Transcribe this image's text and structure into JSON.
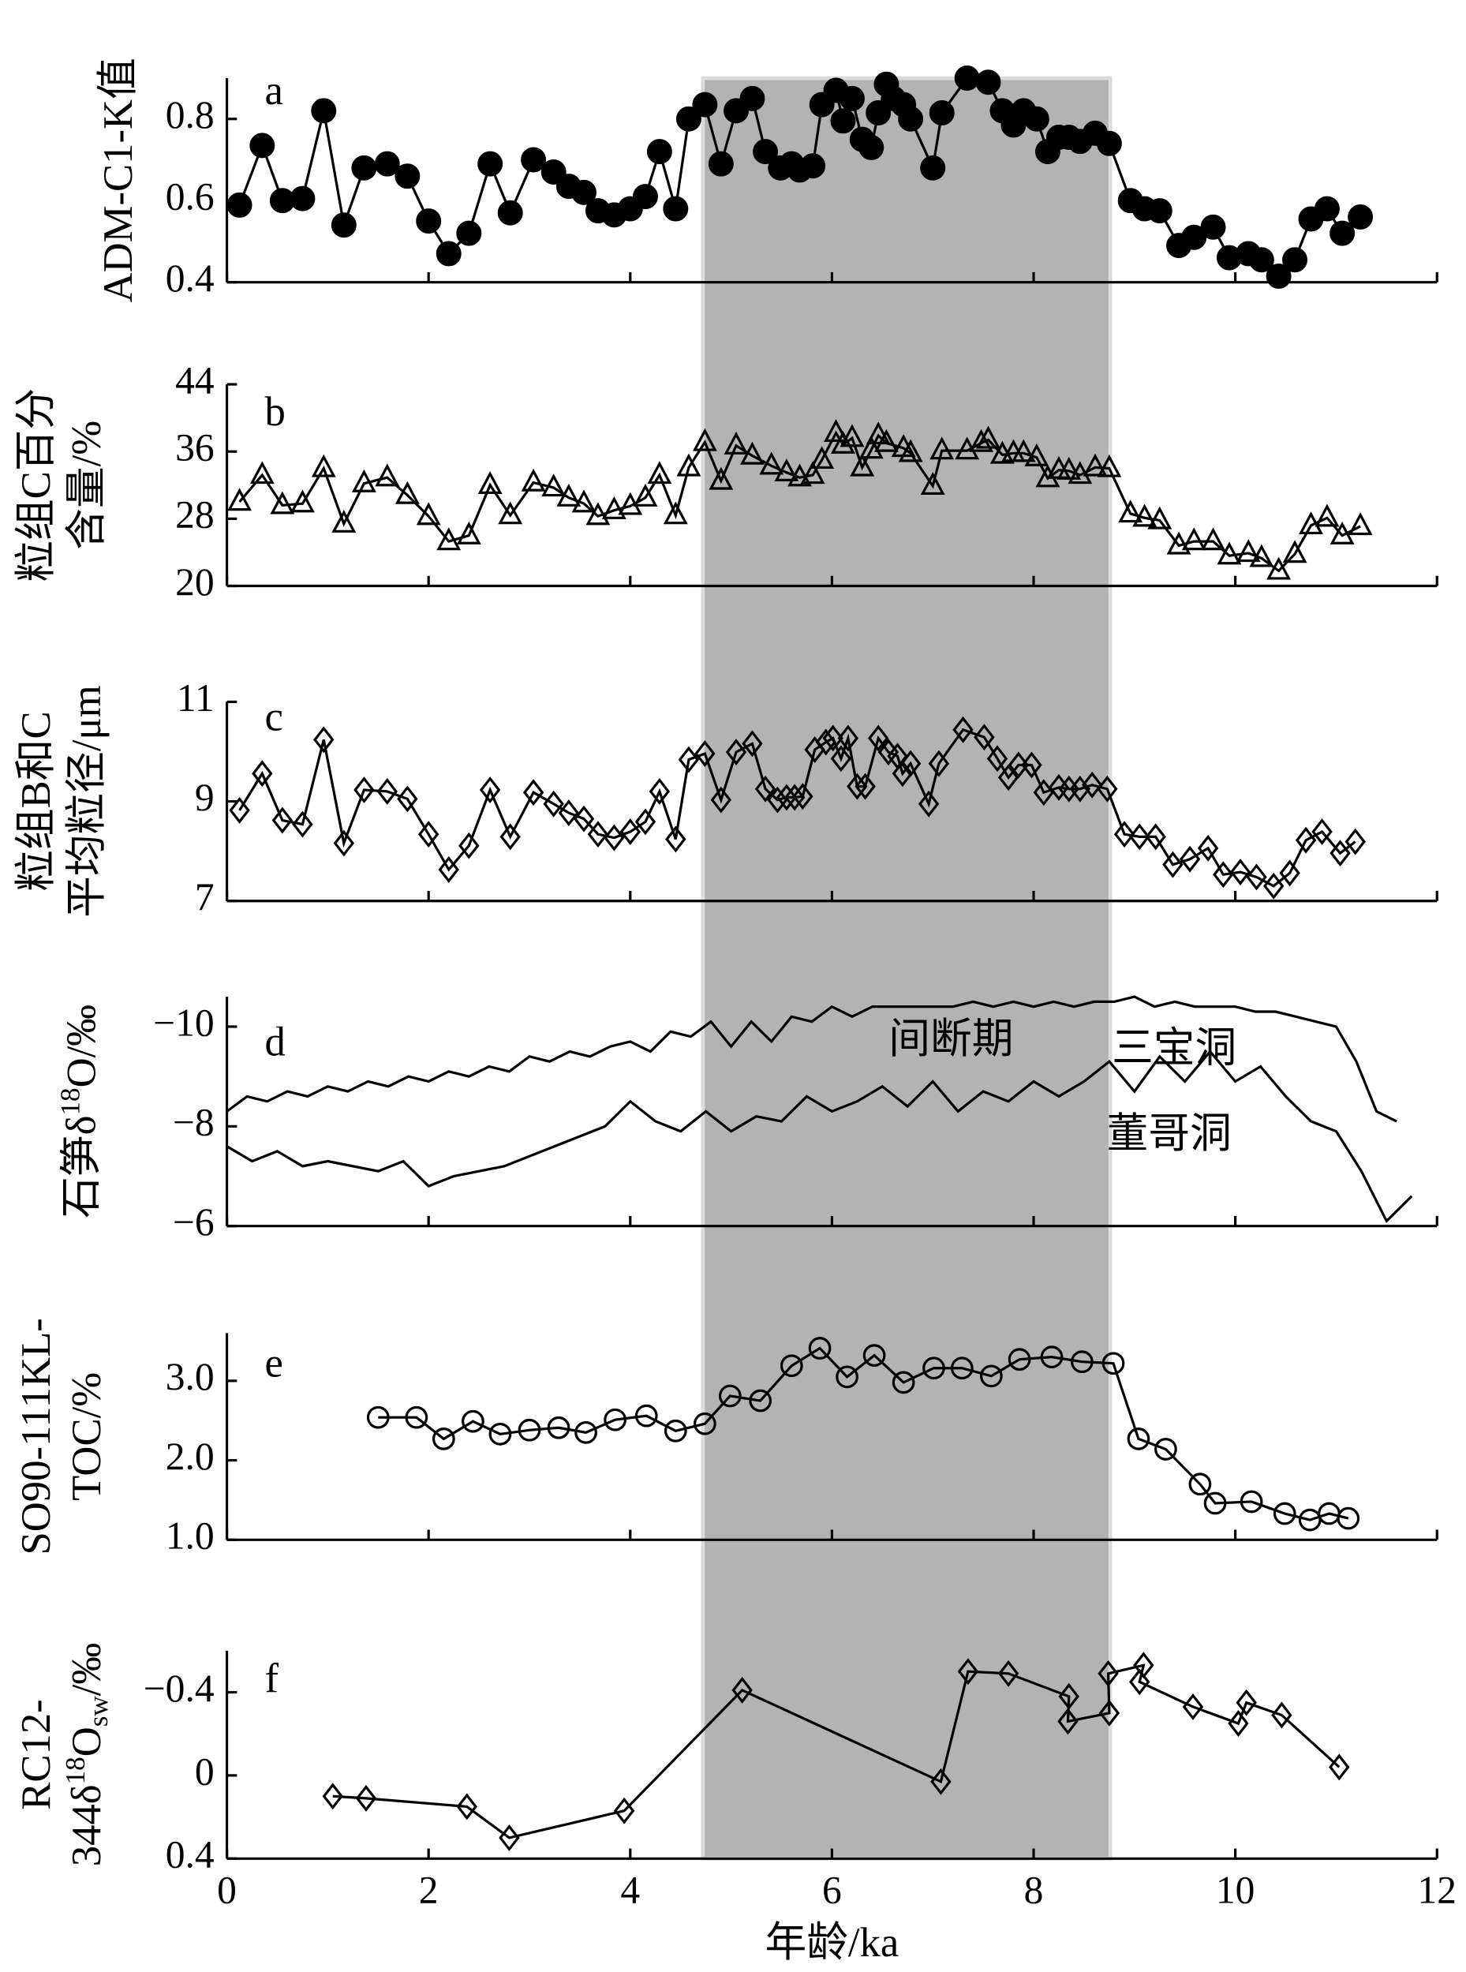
{
  "shaded_span": [
    4.72,
    8.76
  ],
  "chart_data": [
    {
      "type": "line",
      "letter": "a",
      "marker": "filled-circle",
      "ylabel": [
        [
          "ADM-C1-K值"
        ]
      ],
      "ylim": [
        0.4,
        0.9
      ],
      "yticks": [
        0.4,
        0.6,
        0.8
      ],
      "x": [
        0.125,
        0.35,
        0.55,
        0.75,
        0.96,
        1.16,
        1.36,
        1.59,
        1.79,
        2.0,
        2.2,
        2.4,
        2.61,
        2.81,
        3.04,
        3.24,
        3.39,
        3.54,
        3.68,
        3.84,
        4.0,
        4.15,
        4.29,
        4.45,
        4.58,
        4.74,
        4.9,
        5.05,
        5.21,
        5.34,
        5.49,
        5.6,
        5.68,
        5.81,
        5.9,
        6.04,
        6.11,
        6.2,
        6.3,
        6.39,
        6.46,
        6.54,
        6.61,
        6.71,
        6.78,
        7.0,
        7.09,
        7.34,
        7.55,
        7.69,
        7.8,
        7.9,
        8.03,
        8.14,
        8.25,
        8.35,
        8.46,
        8.61,
        8.75,
        8.96,
        9.1,
        9.25,
        9.44,
        9.59,
        9.78,
        9.94,
        10.13,
        10.26,
        10.43,
        10.59,
        10.75,
        10.91,
        11.06,
        11.24
      ],
      "values": [
        0.589,
        0.735,
        0.6,
        0.605,
        0.82,
        0.54,
        0.68,
        0.69,
        0.66,
        0.55,
        0.47,
        0.52,
        0.69,
        0.57,
        0.7,
        0.67,
        0.635,
        0.62,
        0.575,
        0.565,
        0.58,
        0.61,
        0.72,
        0.58,
        0.8,
        0.835,
        0.69,
        0.82,
        0.85,
        0.72,
        0.68,
        0.69,
        0.675,
        0.685,
        0.835,
        0.87,
        0.795,
        0.85,
        0.75,
        0.73,
        0.815,
        0.885,
        0.85,
        0.835,
        0.8,
        0.68,
        0.815,
        0.9,
        0.89,
        0.82,
        0.785,
        0.82,
        0.8,
        0.72,
        0.755,
        0.755,
        0.745,
        0.765,
        0.74,
        0.6,
        0.58,
        0.575,
        0.49,
        0.51,
        0.535,
        0.46,
        0.47,
        0.455,
        0.415,
        0.455,
        0.555,
        0.58,
        0.52,
        0.56
      ]
    },
    {
      "type": "line",
      "letter": "b",
      "marker": "open-triangle",
      "ylabel": [
        [
          "粒组C百分"
        ],
        [
          "含量/%"
        ]
      ],
      "ylim": [
        20,
        44
      ],
      "yticks": [
        20,
        28,
        36,
        44
      ],
      "x": [
        0.125,
        0.35,
        0.55,
        0.75,
        0.96,
        1.16,
        1.36,
        1.59,
        1.79,
        2.0,
        2.2,
        2.4,
        2.61,
        2.81,
        3.04,
        3.24,
        3.39,
        3.54,
        3.68,
        3.84,
        4.0,
        4.15,
        4.29,
        4.45,
        4.58,
        4.74,
        4.9,
        5.05,
        5.21,
        5.4,
        5.55,
        5.68,
        5.81,
        5.9,
        6.04,
        6.11,
        6.2,
        6.3,
        6.39,
        6.46,
        6.54,
        6.71,
        6.78,
        7.0,
        7.09,
        7.34,
        7.48,
        7.55,
        7.69,
        7.8,
        7.9,
        8.03,
        8.14,
        8.25,
        8.35,
        8.46,
        8.61,
        8.75,
        8.96,
        9.1,
        9.25,
        9.44,
        9.59,
        9.78,
        9.94,
        10.13,
        10.26,
        10.43,
        10.59,
        10.75,
        10.91,
        11.06,
        11.24
      ],
      "values": [
        30.0,
        33.2,
        29.6,
        29.8,
        34.0,
        27.4,
        32.2,
        32.9,
        30.8,
        28.3,
        25.3,
        26.0,
        32.0,
        28.4,
        32.3,
        31.7,
        30.5,
        29.8,
        28.3,
        29.0,
        29.5,
        30.5,
        33.2,
        28.4,
        34.1,
        37.1,
        32.5,
        36.7,
        35.5,
        34.3,
        33.5,
        32.9,
        33.2,
        35.0,
        38.2,
        36.8,
        37.6,
        34.1,
        36.2,
        37.9,
        37.0,
        36.4,
        35.8,
        31.9,
        36.1,
        36.1,
        37.0,
        37.4,
        35.6,
        35.8,
        35.8,
        35.3,
        32.8,
        33.8,
        33.7,
        33.2,
        34.1,
        34.0,
        28.6,
        28.1,
        27.8,
        24.8,
        25.3,
        25.3,
        23.6,
        23.9,
        23.3,
        21.8,
        23.8,
        27.2,
        28.1,
        26.0,
        27.1
      ]
    },
    {
      "type": "line",
      "letter": "c",
      "marker": "open-diamond",
      "ylabel": [
        [
          "粒组B和C"
        ],
        [
          "平均粒径/μm"
        ]
      ],
      "ylim": [
        7,
        11
      ],
      "yticks": [
        7,
        9,
        11
      ],
      "x": [
        0.125,
        0.35,
        0.55,
        0.75,
        0.96,
        1.16,
        1.36,
        1.59,
        1.79,
        2.0,
        2.2,
        2.4,
        2.61,
        2.81,
        3.04,
        3.24,
        3.39,
        3.54,
        3.68,
        3.84,
        4.0,
        4.15,
        4.29,
        4.45,
        4.58,
        4.74,
        4.9,
        5.05,
        5.21,
        5.34,
        5.46,
        5.55,
        5.63,
        5.71,
        5.83,
        5.94,
        6.01,
        6.09,
        6.16,
        6.25,
        6.33,
        6.46,
        6.56,
        6.65,
        6.7,
        6.78,
        6.96,
        7.06,
        7.3,
        7.51,
        7.64,
        7.75,
        7.85,
        7.98,
        8.1,
        8.25,
        8.35,
        8.46,
        8.58,
        8.73,
        8.9,
        9.05,
        9.21,
        9.38,
        9.55,
        9.73,
        9.88,
        10.05,
        10.21,
        10.38,
        10.54,
        10.7,
        10.86,
        11.04,
        11.19
      ],
      "values": [
        8.82,
        9.56,
        8.62,
        8.54,
        10.24,
        8.16,
        9.23,
        9.2,
        9.05,
        8.34,
        7.63,
        8.11,
        9.23,
        8.29,
        9.18,
        8.95,
        8.77,
        8.65,
        8.34,
        8.27,
        8.39,
        8.59,
        9.2,
        8.24,
        9.84,
        9.96,
        9.03,
        9.99,
        10.16,
        9.25,
        9.03,
        9.08,
        9.08,
        9.1,
        10.04,
        10.19,
        10.27,
        9.86,
        10.27,
        9.3,
        9.3,
        10.27,
        9.99,
        9.91,
        9.56,
        9.76,
        8.95,
        9.76,
        10.44,
        10.29,
        9.86,
        9.48,
        9.73,
        9.73,
        9.18,
        9.28,
        9.25,
        9.25,
        9.33,
        9.25,
        8.34,
        8.29,
        8.29,
        7.73,
        7.84,
        8.06,
        7.53,
        7.58,
        7.48,
        7.3,
        7.56,
        8.22,
        8.39,
        7.96,
        8.19
      ]
    },
    {
      "type": "multiline",
      "letter": "d",
      "ylabel": [
        [
          "石笋δ",
          {
            "sup": "18"
          },
          "O/‰"
        ]
      ],
      "ylim": [
        -6,
        -10.6
      ],
      "yticks": [
        {
          "value": -10,
          "label": "−10"
        },
        {
          "value": -8,
          "label": "−8"
        },
        {
          "value": -6,
          "label": "−6"
        }
      ],
      "annotations": [
        "间断期"
      ],
      "series": [
        {
          "name": "三宝洞",
          "color": "#000000",
          "x": [
            0,
            0.2,
            0.4,
            0.6,
            0.8,
            1.0,
            1.2,
            1.4,
            1.6,
            1.8,
            2.0,
            2.2,
            2.4,
            2.6,
            2.8,
            3.0,
            3.2,
            3.4,
            3.6,
            3.8,
            4.0,
            4.2,
            4.4,
            4.6,
            4.8,
            5.0,
            5.2,
            5.4,
            5.6,
            5.8,
            6.0,
            6.2,
            6.4,
            6.6,
            6.8,
            7.0,
            7.2,
            7.4,
            7.6,
            7.8,
            8.0,
            8.2,
            8.4,
            8.6,
            8.8,
            9.0,
            9.2,
            9.4,
            9.6,
            9.8,
            10.0,
            10.2,
            10.4,
            10.6,
            10.8,
            11.0,
            11.2,
            11.4,
            11.6
          ],
          "values": [
            -8.3,
            -8.6,
            -8.5,
            -8.7,
            -8.6,
            -8.8,
            -8.7,
            -8.9,
            -8.8,
            -9.0,
            -8.9,
            -9.1,
            -9.0,
            -9.2,
            -9.1,
            -9.4,
            -9.3,
            -9.5,
            -9.4,
            -9.6,
            -9.7,
            -9.5,
            -9.9,
            -9.8,
            -10.1,
            -9.6,
            -10.1,
            -9.7,
            -10.2,
            -10.1,
            -10.4,
            -10.2,
            -10.4,
            -10.4,
            -10.4,
            -10.4,
            -10.4,
            -10.5,
            -10.4,
            -10.5,
            -10.4,
            -10.5,
            -10.4,
            -10.5,
            -10.5,
            -10.6,
            -10.4,
            -10.5,
            -10.4,
            -10.4,
            -10.4,
            -10.3,
            -10.3,
            -10.2,
            -10.1,
            -10.0,
            -9.3,
            -8.3,
            -8.1
          ]
        },
        {
          "name": "董哥洞",
          "color": "#000000",
          "x": [
            0,
            0.25,
            0.5,
            0.75,
            1.0,
            1.25,
            1.5,
            1.75,
            2.0,
            2.25,
            2.5,
            2.75,
            3.0,
            3.25,
            3.5,
            3.75,
            4.0,
            4.25,
            4.5,
            4.75,
            5.0,
            5.25,
            5.5,
            5.75,
            6.0,
            6.25,
            6.5,
            6.75,
            7.0,
            7.25,
            7.5,
            7.75,
            8.0,
            8.25,
            8.5,
            8.75,
            9.0,
            9.25,
            9.5,
            9.75,
            10.0,
            10.25,
            10.5,
            10.75,
            11.0,
            11.25,
            11.5,
            11.75
          ],
          "values": [
            -7.6,
            -7.3,
            -7.5,
            -7.2,
            -7.3,
            -7.2,
            -7.1,
            -7.3,
            -6.8,
            -7.0,
            -7.1,
            -7.2,
            -7.4,
            -7.6,
            -7.8,
            -8.0,
            -8.5,
            -8.1,
            -7.9,
            -8.3,
            -7.9,
            -8.2,
            -8.1,
            -8.6,
            -8.3,
            -8.5,
            -8.8,
            -8.4,
            -8.9,
            -8.3,
            -8.7,
            -8.5,
            -8.9,
            -8.6,
            -8.9,
            -9.3,
            -8.7,
            -9.4,
            -8.9,
            -9.5,
            -8.9,
            -9.2,
            -8.6,
            -8.1,
            -7.9,
            -7.1,
            -6.1,
            -6.6
          ]
        }
      ]
    },
    {
      "type": "line",
      "letter": "e",
      "marker": "open-circle",
      "ylabel": [
        [
          "SO90-111KL-"
        ],
        [
          "TOC/%"
        ]
      ],
      "ylim": [
        1.0,
        3.6
      ],
      "yticks": [
        {
          "value": 1.0,
          "label": "1.0"
        },
        {
          "value": 2.0,
          "label": "2.0"
        },
        {
          "value": 3.0,
          "label": "3.0"
        }
      ],
      "x": [
        1.5,
        1.88,
        2.15,
        2.44,
        2.71,
        3.0,
        3.29,
        3.56,
        3.85,
        4.16,
        4.45,
        4.74,
        4.99,
        5.29,
        5.6,
        5.88,
        6.15,
        6.42,
        6.71,
        7.01,
        7.29,
        7.58,
        7.86,
        8.18,
        8.48,
        8.79,
        9.04,
        9.31,
        9.65,
        9.8,
        10.16,
        10.49,
        10.74,
        10.93,
        11.12
      ],
      "values": [
        2.54,
        2.54,
        2.27,
        2.49,
        2.33,
        2.38,
        2.41,
        2.35,
        2.51,
        2.56,
        2.37,
        2.46,
        2.81,
        2.75,
        3.19,
        3.41,
        3.05,
        3.32,
        2.98,
        3.16,
        3.16,
        3.06,
        3.27,
        3.3,
        3.24,
        3.22,
        2.27,
        2.14,
        1.7,
        1.46,
        1.48,
        1.33,
        1.25,
        1.33,
        1.27
      ]
    },
    {
      "type": "line",
      "letter": "f",
      "marker": "open-diamond",
      "ylabel": [
        [
          "RC12-"
        ],
        [
          "344δ",
          {
            "sup": "18"
          },
          "O",
          {
            "sub": "sw"
          },
          "/‰"
        ]
      ],
      "ylim": [
        0.4,
        -0.6
      ],
      "yticks": [
        0.4,
        0,
        {
          "value": -0.4,
          "label": "−0.4"
        }
      ],
      "xlim": [
        0,
        12
      ],
      "xticks": [
        0,
        2,
        4,
        6,
        8,
        10,
        12
      ],
      "xlabel": "年龄/ka",
      "x": [
        1.05,
        1.38,
        2.38,
        2.8,
        3.94,
        5.11,
        7.08,
        7.35,
        7.75,
        8.35,
        8.34,
        8.75,
        8.74,
        9.09,
        9.05,
        9.58,
        10.03,
        10.11,
        10.46,
        11.03
      ],
      "values": [
        0.1,
        0.11,
        0.15,
        0.3,
        0.17,
        -0.41,
        0.03,
        -0.5,
        -0.49,
        -0.38,
        -0.26,
        -0.3,
        -0.49,
        -0.53,
        -0.45,
        -0.33,
        -0.25,
        -0.35,
        -0.29,
        -0.04
      ]
    }
  ]
}
